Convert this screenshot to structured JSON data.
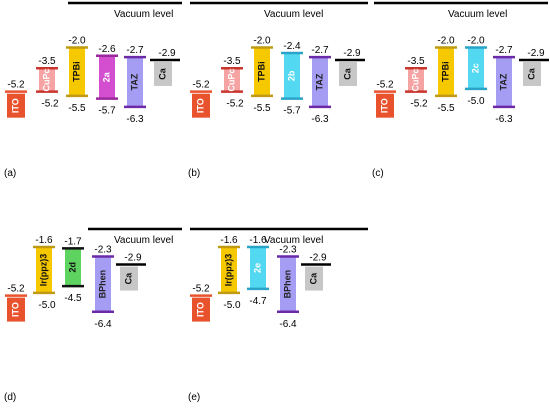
{
  "vacuum_label": "Vacuum level",
  "panels": [
    {
      "label": "(a)",
      "bars": [
        {
          "name": "ITO",
          "color": "#e8532e",
          "line": "#e8532e",
          "type": "block",
          "top": -5.2,
          "top_text": "-5.2",
          "text_color": "#ffffff"
        },
        {
          "name": "CuPc",
          "color": "#f6a3a3",
          "line": "#c9362f",
          "type": "bar",
          "top": -3.5,
          "bottom": -5.2,
          "top_text": "-3.5",
          "bottom_text": "-5.2",
          "bottom_text_side": "right",
          "text_color": "#ffffff"
        },
        {
          "name": "TPBi",
          "color": "#f6c800",
          "line": "#bf9a12",
          "type": "bar",
          "top": -2.0,
          "bottom": -5.5,
          "top_text": "-2.0",
          "bottom_text": "-5.5",
          "text_color": "#111111"
        },
        {
          "name": "2a",
          "color": "#d34fcf",
          "line": "#9a2a9c",
          "type": "bar",
          "top": -2.6,
          "bottom": -5.7,
          "top_text": "-2.6",
          "bottom_text": "-5.7",
          "text_color": "#ffffff"
        },
        {
          "name": "TAZ",
          "color": "#a59df3",
          "line": "#6c2aa8",
          "type": "bar",
          "top": -2.7,
          "bottom": -6.3,
          "top_text": "-2.7",
          "bottom_text": "-6.3",
          "text_color": "#222222"
        },
        {
          "name": "Ca",
          "color": "#c7c7c7",
          "line": "#000000",
          "type": "cathode",
          "top": -2.9,
          "top_text": "-2.9",
          "text_color": "#111111"
        }
      ]
    },
    {
      "label": "(b)",
      "bars": [
        {
          "name": "ITO",
          "color": "#e8532e",
          "line": "#e8532e",
          "type": "block",
          "top": -5.2,
          "top_text": "-5.2",
          "text_color": "#ffffff"
        },
        {
          "name": "CuPc",
          "color": "#f6a3a3",
          "line": "#c9362f",
          "type": "bar",
          "top": -3.5,
          "bottom": -5.2,
          "top_text": "-3.5",
          "bottom_text": "-5.2",
          "bottom_text_side": "right",
          "text_color": "#ffffff"
        },
        {
          "name": "TPBi",
          "color": "#f6c800",
          "line": "#bf9a12",
          "type": "bar",
          "top": -2.0,
          "bottom": -5.5,
          "top_text": "-2.0",
          "bottom_text": "-5.5",
          "text_color": "#111111"
        },
        {
          "name": "2b",
          "color": "#52d8f0",
          "line": "#2aa3c9",
          "type": "bar",
          "top": -2.4,
          "bottom": -5.7,
          "top_text": "-2.4",
          "bottom_text": "-5.7",
          "text_color": "#ffffff"
        },
        {
          "name": "TAZ",
          "color": "#a59df3",
          "line": "#6c2aa8",
          "type": "bar",
          "top": -2.7,
          "bottom": -6.3,
          "top_text": "-2.7",
          "bottom_text": "-6.3",
          "text_color": "#222222"
        },
        {
          "name": "Ca",
          "color": "#c7c7c7",
          "line": "#000000",
          "type": "cathode",
          "top": -2.9,
          "top_text": "-2.9",
          "text_color": "#111111"
        }
      ]
    },
    {
      "label": "(c)",
      "bars": [
        {
          "name": "ITO",
          "color": "#e8532e",
          "line": "#e8532e",
          "type": "block",
          "top": -5.2,
          "top_text": "-5.2",
          "text_color": "#ffffff"
        },
        {
          "name": "CuPc",
          "color": "#f6a3a3",
          "line": "#c9362f",
          "type": "bar",
          "top": -3.5,
          "bottom": -5.2,
          "top_text": "-3.5",
          "bottom_text": "-5.2",
          "bottom_text_side": "right",
          "text_color": "#ffffff"
        },
        {
          "name": "TPBi",
          "color": "#f6c800",
          "line": "#bf9a12",
          "type": "bar",
          "top": -2.0,
          "bottom": -5.5,
          "top_text": "-2.0",
          "bottom_text": "-5.5",
          "text_color": "#111111"
        },
        {
          "name": "2c",
          "color": "#52d8f0",
          "line": "#2aa3c9",
          "type": "bar",
          "top": -2.0,
          "bottom": -5.0,
          "top_text": "-2.0",
          "bottom_text": "-5.0",
          "text_color": "#ffffff"
        },
        {
          "name": "TAZ",
          "color": "#a59df3",
          "line": "#6c2aa8",
          "type": "bar",
          "top": -2.7,
          "bottom": -6.3,
          "top_text": "-2.7",
          "bottom_text": "-6.3",
          "text_color": "#222222"
        },
        {
          "name": "Ca",
          "color": "#c7c7c7",
          "line": "#000000",
          "type": "cathode",
          "top": -2.9,
          "top_text": "-2.9",
          "text_color": "#111111"
        }
      ]
    },
    {
      "label": "(d)",
      "bars": [
        {
          "name": "ITO",
          "color": "#e8532e",
          "line": "#e8532e",
          "type": "block",
          "top": -5.2,
          "top_text": "-5.2",
          "text_color": "#ffffff"
        },
        {
          "name": "Ir(ppz)3",
          "color": "#f6c800",
          "line": "#bf9a12",
          "type": "bar",
          "top": -1.6,
          "bottom": -5.0,
          "top_text": "-1.6",
          "bottom_text": "-5.0",
          "bottom_text_side": "right",
          "text_color": "#111111"
        },
        {
          "name": "2d",
          "color": "#5fd35f",
          "line": "#111111",
          "type": "bar",
          "top": -1.7,
          "bottom": -4.5,
          "top_text": "-1.7",
          "bottom_text": "-4.5",
          "text_color": "#111111"
        },
        {
          "name": "BPhen",
          "color": "#a59df3",
          "line": "#6c2aa8",
          "type": "bar",
          "top": -2.3,
          "bottom": -6.4,
          "top_text": "-2.3",
          "bottom_text": "-6.4",
          "text_color": "#222222"
        },
        {
          "name": "Ca",
          "color": "#c7c7c7",
          "line": "#000000",
          "type": "cathode",
          "top": -2.9,
          "top_text": "-2.9",
          "text_color": "#111111"
        }
      ]
    },
    {
      "label": "(e)",
      "bars": [
        {
          "name": "ITO",
          "color": "#e8532e",
          "line": "#e8532e",
          "type": "block",
          "top": -5.2,
          "top_text": "-5.2",
          "text_color": "#ffffff"
        },
        {
          "name": "Ir(ppz)3",
          "color": "#f6c800",
          "line": "#bf9a12",
          "type": "bar",
          "top": -1.6,
          "bottom": -5.0,
          "top_text": "-1.6",
          "bottom_text": "-5.0",
          "bottom_text_side": "right",
          "text_color": "#111111"
        },
        {
          "name": "2e",
          "color": "#52d8f0",
          "line": "#2aa3c9",
          "type": "bar",
          "top": -1.6,
          "bottom": -4.7,
          "top_text": "-1.6",
          "bottom_text": "-4.7",
          "text_color": "#ffffff"
        },
        {
          "name": "BPhen",
          "color": "#a59df3",
          "line": "#6c2aa8",
          "type": "bar",
          "top": -2.3,
          "bottom": -6.4,
          "top_text": "-2.3",
          "bottom_text": "-6.4",
          "text_color": "#222222"
        },
        {
          "name": "Ca",
          "color": "#c7c7c7",
          "line": "#000000",
          "type": "cathode",
          "top": -2.9,
          "top_text": "-2.9",
          "text_color": "#111111"
        }
      ]
    }
  ]
}
